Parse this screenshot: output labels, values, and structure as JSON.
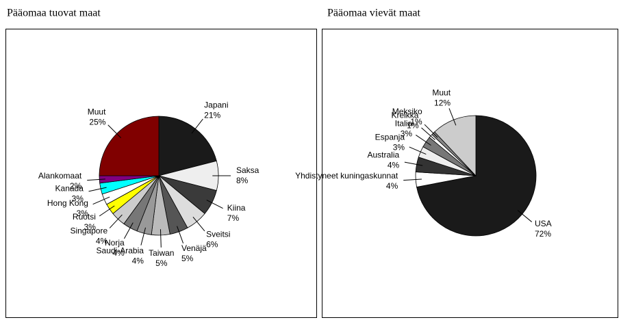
{
  "chart_data": [
    {
      "type": "pie",
      "title": "Pääomaa tuovat maat",
      "categories": [
        "Japani",
        "Saksa",
        "Kiina",
        "Sveitsi",
        "Venäjä",
        "Taiwan",
        "Saudi-Arabia",
        "Norja",
        "Singapore",
        "Ruotsi",
        "Hong Kong",
        "Kanada",
        "Alankomaat",
        "Muut"
      ],
      "values": [
        21,
        8,
        7,
        6,
        5,
        5,
        4,
        4,
        4,
        3,
        3,
        3,
        2,
        25
      ],
      "value_labels": [
        "21%",
        "8%",
        "7%",
        "6%",
        "5%",
        "5%",
        "4%",
        "4%",
        "4%",
        "3%",
        "3%",
        "3%",
        "2%",
        "25%"
      ],
      "colors": [
        "#1a1a1a",
        "#eeeeee",
        "#3a3a3a",
        "#dddddd",
        "#555555",
        "#bbbbbb",
        "#999999",
        "#777777",
        "#cccccc",
        "#ffff00",
        "#ffffff",
        "#00ffff",
        "#800080",
        "#800000"
      ]
    },
    {
      "type": "pie",
      "title": "Pääomaa vievät maat",
      "categories": [
        "USA",
        "Yhdistyneet kuningaskunnat",
        "Australia",
        "Espanja",
        "Italia",
        "Kreikka",
        "Meksiko",
        "Muut"
      ],
      "values": [
        72,
        4,
        4,
        3,
        3,
        1,
        1,
        12
      ],
      "value_labels": [
        "72%",
        "4%",
        "4%",
        "3%",
        "3%",
        "1%",
        "1%",
        "12%"
      ],
      "colors": [
        "#1a1a1a",
        "#ffffff",
        "#333333",
        "#eeeeee",
        "#777777",
        "#ffffff",
        "#888888",
        "#cccccc"
      ]
    }
  ]
}
